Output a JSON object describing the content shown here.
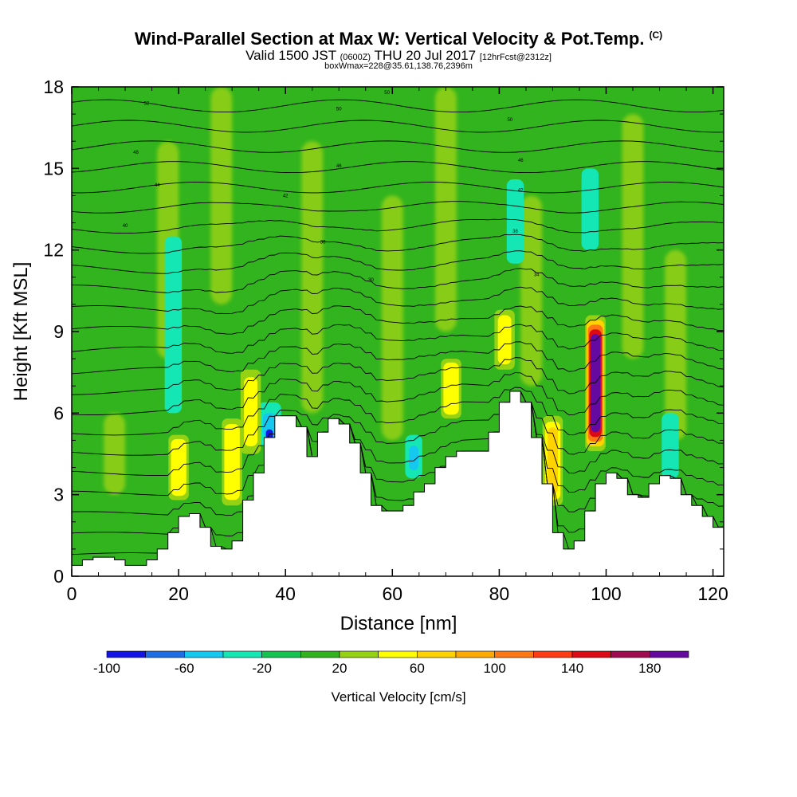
{
  "header": {
    "title": "Wind-Parallel Section at Max W: Vertical Velocity & Pot.Temp.",
    "copyright": "(C)",
    "valid_prefix": "Valid 1500 JST",
    "valid_z": "(0600Z)",
    "valid_date": "THU 20 Jul 2017",
    "forecast_tag": "[12hrFcst@2312z]",
    "boxinfo": "boxWmax=228@35.61,138.76,2396m"
  },
  "chart_data": {
    "type": "heatmap",
    "title": "Wind-Parallel Section at Max W: Vertical Velocity & Pot.Temp.",
    "xlabel": "Distance [nm]",
    "ylabel": "Height [Kft MSL]",
    "xlim": [
      0,
      122
    ],
    "ylim": [
      0,
      18
    ],
    "xticks": [
      0,
      20,
      40,
      60,
      80,
      100,
      120
    ],
    "xtick_labels": [
      "0",
      "20",
      "40",
      "60",
      "80",
      "100",
      "120"
    ],
    "yticks": [
      0,
      3,
      6,
      9,
      12,
      15,
      18
    ],
    "ytick_labels": [
      "0",
      "3",
      "6",
      "9",
      "12",
      "15",
      "18"
    ],
    "colorbar": {
      "label": "Vertical Velocity [cm/s]",
      "bounds": [
        -100,
        200
      ],
      "step": 20,
      "tick_values": [
        -100,
        -60,
        -20,
        20,
        60,
        100,
        140,
        180
      ],
      "tick_labels": [
        "-100",
        "-60",
        "-20",
        "20",
        "60",
        "100",
        "140",
        "180"
      ],
      "colors": [
        "#1414e6",
        "#1e6ee6",
        "#14c8f0",
        "#14e6b4",
        "#14c350",
        "#32b41e",
        "#96d214",
        "#ffff00",
        "#ffd200",
        "#ffaa00",
        "#ff7814",
        "#ff3c14",
        "#dc0a14",
        "#a00a50",
        "#640aa0"
      ]
    },
    "terrain": {
      "x": [
        0,
        2,
        4,
        6,
        8,
        10,
        12,
        14,
        16,
        18,
        20,
        22,
        24,
        26,
        28,
        30,
        32,
        34,
        36,
        38,
        40,
        42,
        44,
        46,
        48,
        50,
        52,
        54,
        56,
        58,
        60,
        62,
        64,
        66,
        68,
        70,
        72,
        74,
        76,
        78,
        80,
        82,
        84,
        86,
        88,
        90,
        92,
        94,
        96,
        98,
        100,
        102,
        104,
        106,
        108,
        110,
        112,
        114,
        116,
        118,
        120,
        122
      ],
      "height_kft": [
        0.4,
        0.6,
        0.7,
        0.7,
        0.6,
        0.4,
        0.4,
        0.6,
        1.0,
        1.6,
        2.2,
        2.3,
        1.8,
        1.1,
        1.0,
        1.3,
        2.8,
        3.8,
        5.1,
        5.9,
        5.9,
        5.5,
        4.4,
        5.3,
        5.8,
        5.6,
        4.9,
        3.8,
        2.6,
        2.4,
        2.4,
        2.6,
        3.1,
        3.4,
        4.0,
        4.4,
        4.6,
        4.6,
        4.6,
        5.3,
        6.4,
        6.8,
        6.4,
        5.1,
        3.4,
        1.6,
        1.0,
        1.3,
        2.4,
        3.4,
        3.8,
        3.6,
        3.0,
        2.9,
        3.4,
        3.7,
        3.6,
        3.0,
        2.6,
        2.2,
        1.8,
        1.6
      ]
    },
    "updraft_cores": [
      {
        "x": 20,
        "z_bottom": 2.8,
        "z_top": 5.2,
        "w": 55
      },
      {
        "x": 30,
        "z_bottom": 2.6,
        "z_top": 5.8,
        "w": 50
      },
      {
        "x": 33.5,
        "z_bottom": 4.5,
        "z_top": 7.6,
        "w": 45
      },
      {
        "x": 71,
        "z_bottom": 5.8,
        "z_top": 8.0,
        "w": 50
      },
      {
        "x": 81,
        "z_bottom": 7.6,
        "z_top": 9.8,
        "w": 40
      },
      {
        "x": 90,
        "z_bottom": 2.6,
        "z_top": 5.9,
        "w": 60
      },
      {
        "x": 98,
        "z_bottom": 4.6,
        "z_top": 9.6,
        "w": 228
      }
    ],
    "downdraft_cores": [
      {
        "x": 37,
        "z_bottom": 4.8,
        "z_top": 6.4,
        "w": -95
      },
      {
        "x": 19,
        "z_bottom": 6.0,
        "z_top": 12.5,
        "w": -25
      },
      {
        "x": 64,
        "z_bottom": 3.6,
        "z_top": 5.2,
        "w": -50
      },
      {
        "x": 83,
        "z_bottom": 11.5,
        "z_top": 14.6,
        "w": -25
      },
      {
        "x": 97,
        "z_bottom": 12.0,
        "z_top": 15.0,
        "w": -25
      },
      {
        "x": 112,
        "z_bottom": 3.6,
        "z_top": 6.0,
        "w": -25
      }
    ],
    "theta_contours": {
      "interval_k": 1,
      "labels": [
        "52",
        "50",
        "50",
        "50",
        "48",
        "46",
        "46",
        "44",
        "42",
        "42",
        "40",
        "38",
        "36",
        "34",
        "30"
      ]
    }
  }
}
